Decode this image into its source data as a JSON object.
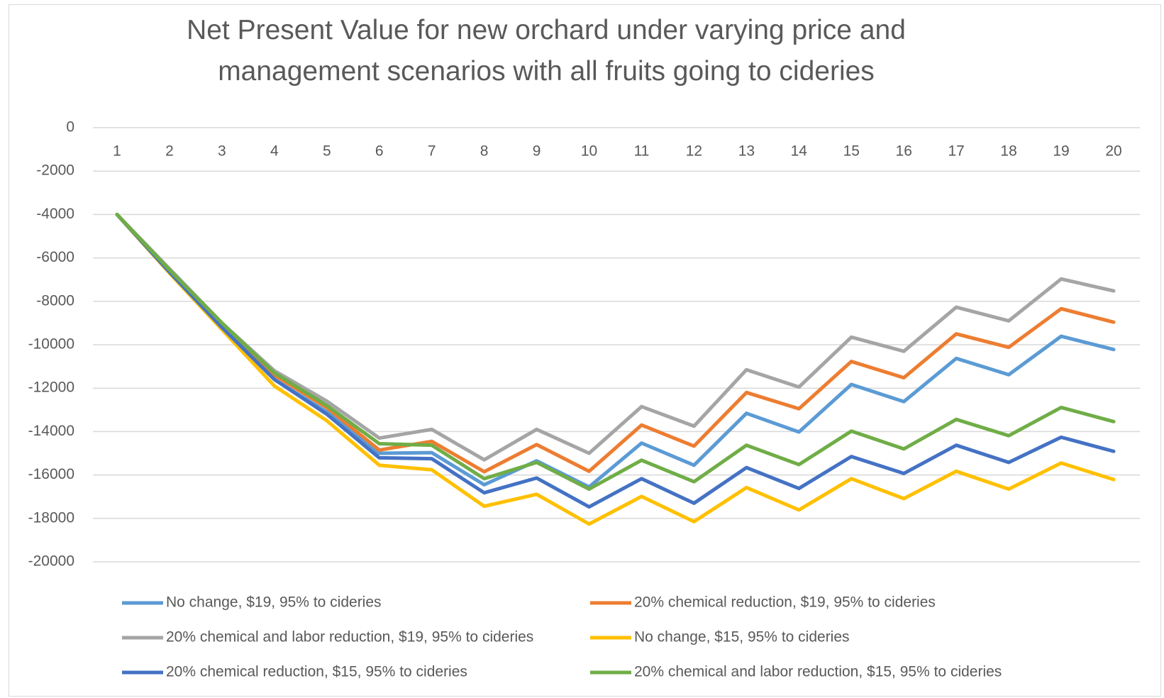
{
  "chart_data": {
    "type": "line",
    "title": "Net Present Value for new orchard under varying price and management scenarios with all fruits going to cideries",
    "categories": [
      "1",
      "2",
      "3",
      "4",
      "5",
      "6",
      "7",
      "8",
      "9",
      "10",
      "11",
      "12",
      "13",
      "14",
      "15",
      "16",
      "17",
      "18",
      "19",
      "20"
    ],
    "ylim": [
      -20000,
      0
    ],
    "yticks": [
      0,
      -2000,
      -4000,
      -6000,
      -8000,
      -10000,
      -12000,
      -14000,
      -16000,
      -18000,
      -20000
    ],
    "grid": true,
    "legend": "bottom",
    "series": [
      {
        "name": "No change, $19, 95% to cideries",
        "color": "#5b9bd5",
        "values": [
          -4000,
          -6650,
          -9200,
          -11600,
          -13100,
          -15000,
          -14970,
          -16450,
          -15350,
          -16550,
          -14530,
          -15550,
          -13160,
          -14020,
          -11830,
          -12620,
          -10630,
          -11380,
          -9610,
          -10220
        ]
      },
      {
        "name": "20% chemical reduction, $19, 95% to cideries",
        "color": "#ed7d31",
        "values": [
          -4000,
          -6600,
          -9100,
          -11400,
          -12900,
          -14850,
          -14450,
          -15850,
          -14600,
          -15830,
          -13700,
          -14670,
          -12200,
          -12950,
          -10770,
          -11520,
          -9500,
          -10120,
          -8340,
          -8960
        ]
      },
      {
        "name": "20% chemical and labor reduction, $19, 95% to cideries",
        "color": "#a5a5a5",
        "values": [
          -4000,
          -6500,
          -9000,
          -11200,
          -12600,
          -14300,
          -13900,
          -15300,
          -13900,
          -15000,
          -12850,
          -13750,
          -11150,
          -11950,
          -9650,
          -10300,
          -8270,
          -8900,
          -6970,
          -7520
        ]
      },
      {
        "name": "No change, $15, 95% to cideries",
        "color": "#ffc000",
        "values": [
          -4000,
          -6700,
          -9300,
          -11900,
          -13500,
          -15550,
          -15760,
          -17440,
          -16890,
          -18260,
          -16990,
          -18150,
          -16580,
          -17610,
          -16170,
          -17090,
          -15830,
          -16650,
          -15450,
          -16210
        ]
      },
      {
        "name": "20% chemical reduction, $15, 95% to cideries",
        "color": "#4472c4",
        "values": [
          -4000,
          -6650,
          -9200,
          -11600,
          -13200,
          -15210,
          -15250,
          -16820,
          -16140,
          -17470,
          -16170,
          -17300,
          -15660,
          -16620,
          -15150,
          -15930,
          -14630,
          -15420,
          -14260,
          -14910
        ]
      },
      {
        "name": "20% chemical and labor reduction, $15, 95% to cideries",
        "color": "#70ad47",
        "values": [
          -4000,
          -6550,
          -9000,
          -11300,
          -12800,
          -14560,
          -14630,
          -16170,
          -15420,
          -16650,
          -15320,
          -16310,
          -14630,
          -15520,
          -13980,
          -14800,
          -13440,
          -14190,
          -12890,
          -13540
        ]
      }
    ]
  }
}
